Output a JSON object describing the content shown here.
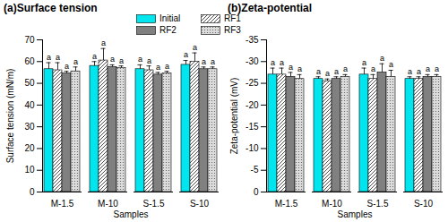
{
  "chart_data": [
    {
      "type": "bar",
      "title": "(a)Surface tension",
      "x_label": "Samples",
      "y_label": "Surface tension (mN/m)",
      "categories": [
        "M-1.5",
        "M-10",
        "S-1.5",
        "S-10"
      ],
      "series": [
        {
          "name": "Initial",
          "color": "#00e5ee",
          "values": [
            56.5,
            58,
            56.5,
            58.5
          ],
          "errors": [
            3,
            2,
            2,
            2
          ],
          "letters": [
            "a",
            "a",
            "a",
            "a"
          ]
        },
        {
          "name": "RF1",
          "color": "#ffffff",
          "values": [
            56,
            60.5,
            56,
            60
          ],
          "errors": [
            3.5,
            5.5,
            2,
            4
          ],
          "letters": [
            "a",
            "a",
            "a",
            "a"
          ]
        },
        {
          "name": "RF2",
          "color": "#808080",
          "values": [
            54.5,
            57.5,
            54,
            56.5
          ],
          "errors": [
            1,
            1,
            1,
            1
          ],
          "letters": [
            "a",
            "a",
            "a",
            "a"
          ]
        },
        {
          "name": "RF3",
          "color": "#dcdcdc",
          "values": [
            55.5,
            57,
            54.5,
            56.5
          ],
          "errors": [
            2,
            1,
            1,
            1
          ],
          "letters": [
            "a",
            "a",
            "a",
            "a"
          ]
        }
      ],
      "ylim": [
        0,
        70
      ],
      "yticks": [
        0,
        10,
        20,
        30,
        40,
        50,
        60,
        70
      ],
      "legend": "top"
    },
    {
      "type": "bar",
      "title": "(b)Zeta-potential",
      "x_label": "Samples",
      "y_label": "Zeta-potential (mV)",
      "categories": [
        "M-1.5",
        "M-10",
        "S-1.5",
        "S-10"
      ],
      "series": [
        {
          "name": "Initial",
          "color": "#00e5ee",
          "values": [
            -27,
            -26,
            -27,
            -26
          ],
          "errors": [
            1.5,
            0.5,
            1.5,
            0.5
          ],
          "letters": [
            "a",
            "a",
            "a",
            "a"
          ]
        },
        {
          "name": "RF1",
          "color": "#ffffff",
          "values": [
            -27,
            -25.5,
            -26,
            -26
          ],
          "errors": [
            1.5,
            0.5,
            1,
            0.5
          ],
          "letters": [
            "a",
            "a",
            "a",
            "a"
          ]
        },
        {
          "name": "RF2",
          "color": "#808080",
          "values": [
            -26.5,
            -26,
            -27.5,
            -26.5
          ],
          "errors": [
            1,
            0.5,
            2,
            0.5
          ],
          "letters": [
            "a",
            "a",
            "a",
            "a"
          ]
        },
        {
          "name": "RF3",
          "color": "#dcdcdc",
          "values": [
            -26,
            -26.5,
            -26.5,
            -26.5
          ],
          "errors": [
            1,
            0.5,
            1.5,
            0.5
          ],
          "letters": [
            "a",
            "a",
            "a",
            "a"
          ]
        }
      ],
      "ylim": [
        0,
        -35
      ],
      "yticks": [
        0,
        -5,
        -10,
        -15,
        -20,
        -25,
        -30,
        -35
      ]
    }
  ]
}
